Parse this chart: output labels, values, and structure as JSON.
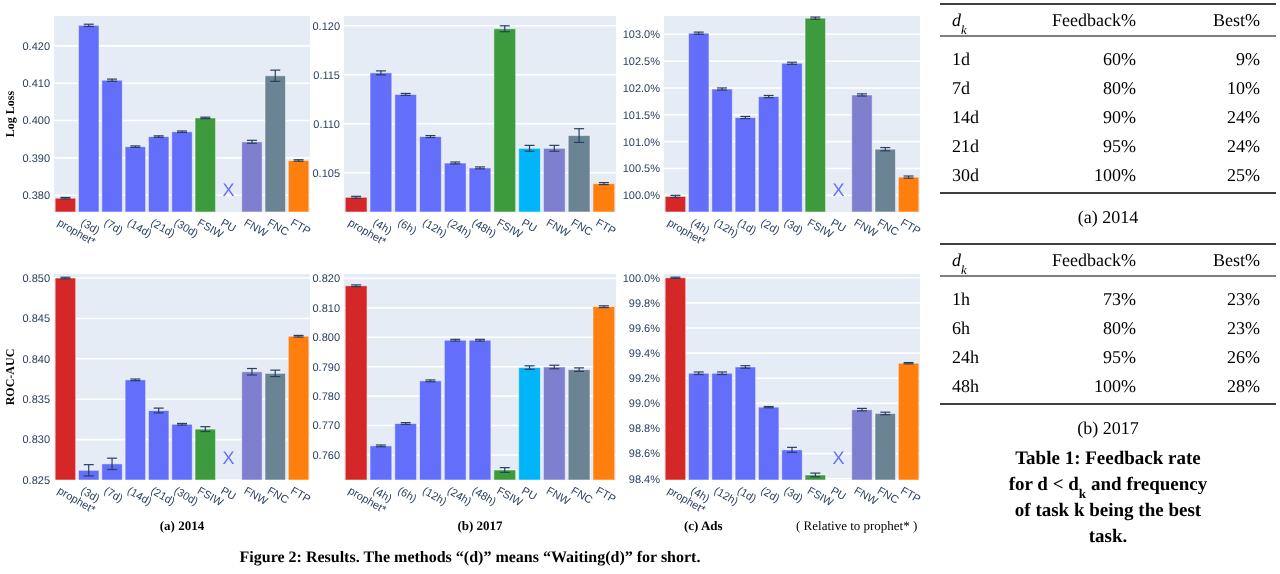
{
  "chart_data": [
    {
      "type": "bar",
      "ylabel": "Log Loss",
      "categories": [
        "prophet*",
        "(3d)",
        "(7d)",
        "(14d)",
        "(21d)",
        "(30d)",
        "FSIW",
        "PU",
        "FNW",
        "FNC",
        "FTP"
      ],
      "values": [
        0.3792,
        0.4255,
        0.4108,
        0.393,
        0.3957,
        0.397,
        0.4007,
        null,
        0.3943,
        0.412,
        0.3893
      ],
      "colors": [
        "#d62728",
        "#636efa",
        "#636efa",
        "#636efa",
        "#636efa",
        "#636efa",
        "#3d9a3d",
        null,
        "#7f7fd0",
        "#6b8494",
        "#ff7f0e"
      ],
      "errors": [
        0.0002,
        0.0003,
        0.0003,
        0.0002,
        0.0002,
        0.0002,
        0.0002,
        null,
        0.0004,
        0.0015,
        0.0002
      ],
      "ylim": [
        0.3755,
        0.428
      ],
      "yticks": [
        {
          "value": 0.38,
          "label": "0.380"
        },
        {
          "value": 0.39,
          "label": "0.390"
        },
        {
          "value": 0.4,
          "label": "0.400"
        },
        {
          "value": 0.41,
          "label": "0.410"
        },
        {
          "value": 0.42,
          "label": "0.420"
        }
      ],
      "grid": "y",
      "annotations": [
        "X"
      ]
    },
    {
      "type": "bar",
      "categories": [
        "prophet*",
        "(4h)",
        "(6h)",
        "(12h)",
        "(24h)",
        "(48h)",
        "FSIW",
        "PU",
        "FNW",
        "FNC",
        "FTP"
      ],
      "values": [
        0.1025,
        0.1152,
        0.113,
        0.1087,
        0.106,
        0.1055,
        0.1197,
        0.1075,
        0.1075,
        0.1088,
        0.1039
      ],
      "colors": [
        "#d62728",
        "#636efa",
        "#636efa",
        "#636efa",
        "#636efa",
        "#636efa",
        "#3d9a3d",
        "#00b5f7",
        "#7f7fd0",
        "#6b8494",
        "#ff7f0e"
      ],
      "errors": [
        0.0001,
        0.0002,
        0.0001,
        0.0001,
        0.0001,
        0.0001,
        0.0003,
        0.0003,
        0.0003,
        0.0007,
        0.0001
      ],
      "ylim": [
        0.101,
        0.121
      ],
      "yticks": [
        {
          "value": 0.105,
          "label": "0.105"
        },
        {
          "value": 0.11,
          "label": "0.110"
        },
        {
          "value": 0.115,
          "label": "0.115"
        },
        {
          "value": 0.12,
          "label": "0.120"
        }
      ],
      "grid": "y"
    },
    {
      "type": "bar",
      "categories": [
        "prophet*",
        "(4h)",
        "(12h)",
        "(1d)",
        "(2d)",
        "(3d)",
        "FSIW",
        "PU",
        "FNW",
        "FNC",
        "FTP"
      ],
      "values": [
        99.98,
        103.02,
        101.98,
        101.45,
        101.84,
        102.46,
        103.3,
        null,
        101.87,
        100.86,
        100.34
      ],
      "colors": [
        "#d62728",
        "#636efa",
        "#636efa",
        "#636efa",
        "#636efa",
        "#636efa",
        "#3d9a3d",
        null,
        "#7f7fd0",
        "#6b8494",
        "#ff7f0e"
      ],
      "errors": [
        0.02,
        0.02,
        0.02,
        0.02,
        0.02,
        0.02,
        0.02,
        null,
        0.02,
        0.03,
        0.02
      ],
      "ylim": [
        99.69,
        103.34
      ],
      "yticks": [
        {
          "value": 100,
          "label": "100.0%"
        },
        {
          "value": 100.5,
          "label": "100.5%"
        },
        {
          "value": 101,
          "label": "101.0%"
        },
        {
          "value": 101.5,
          "label": "101.5%"
        },
        {
          "value": 102,
          "label": "102.0%"
        },
        {
          "value": 102.5,
          "label": "102.5%"
        },
        {
          "value": 103,
          "label": "103.0%"
        }
      ],
      "grid": "y",
      "annotations": [
        "X"
      ]
    },
    {
      "type": "bar",
      "title": "(a) 2014",
      "ylabel": "ROC-AUC",
      "categories": [
        "prophet*",
        "(3d)",
        "(7d)",
        "(14d)",
        "(21d)",
        "(30d)",
        "FSIW",
        "PU",
        "FNW",
        "FNC",
        "FTP"
      ],
      "values": [
        0.85,
        0.8262,
        0.827,
        0.8374,
        0.8336,
        0.8319,
        0.8313,
        null,
        0.8384,
        0.8382,
        0.8428
      ],
      "colors": [
        "#d62728",
        "#636efa",
        "#636efa",
        "#636efa",
        "#636efa",
        "#636efa",
        "#3d9a3d",
        null,
        "#7f7fd0",
        "#6b8494",
        "#ff7f0e"
      ],
      "errors": [
        0.0001,
        0.0007,
        0.0007,
        0.0001,
        0.0003,
        0.0001,
        0.0003,
        null,
        0.0004,
        0.0004,
        0.0001
      ],
      "ylim": [
        0.825,
        0.8505
      ],
      "yticks": [
        {
          "value": 0.825,
          "label": "0.825"
        },
        {
          "value": 0.83,
          "label": "0.830"
        },
        {
          "value": 0.835,
          "label": "0.835"
        },
        {
          "value": 0.84,
          "label": "0.840"
        },
        {
          "value": 0.845,
          "label": "0.845"
        },
        {
          "value": 0.85,
          "label": "0.850"
        }
      ],
      "grid": "y",
      "annotations": [
        "X",
        "Figure 2: Results. The methods “(d)” means “Waiting(d)” for short."
      ]
    },
    {
      "type": "bar",
      "title": "(b) 2017",
      "categories": [
        "prophet*",
        "(4h)",
        "(6h)",
        "(12h)",
        "(24h)",
        "(48h)",
        "FSIW",
        "PU",
        "FNW",
        "FNC",
        "FTP"
      ],
      "values": [
        0.8175,
        0.7631,
        0.7707,
        0.7852,
        0.799,
        0.799,
        0.7549,
        0.7897,
        0.7899,
        0.789,
        0.8104
      ],
      "colors": [
        "#d62728",
        "#636efa",
        "#636efa",
        "#636efa",
        "#636efa",
        "#636efa",
        "#3d9a3d",
        "#00b5f7",
        "#7f7fd0",
        "#6b8494",
        "#ff7f0e"
      ],
      "errors": [
        0.0003,
        0.0003,
        0.0003,
        0.0003,
        0.0003,
        0.0003,
        0.0008,
        0.0006,
        0.0006,
        0.0006,
        0.0003
      ],
      "ylim": [
        0.7515,
        0.8215
      ],
      "yticks": [
        {
          "value": 0.76,
          "label": "0.760"
        },
        {
          "value": 0.77,
          "label": "0.770"
        },
        {
          "value": 0.78,
          "label": "0.780"
        },
        {
          "value": 0.79,
          "label": "0.790"
        },
        {
          "value": 0.8,
          "label": "0.800"
        },
        {
          "value": 0.81,
          "label": "0.810"
        },
        {
          "value": 0.82,
          "label": "0.820"
        }
      ],
      "grid": "y"
    },
    {
      "type": "bar",
      "title": "(c) Ads",
      "categories": [
        "prophet*",
        "(4h)",
        "(12h)",
        "(1d)",
        "(2d)",
        "(3d)",
        "FSIW",
        "PU",
        "FNW",
        "FNC",
        "FTP"
      ],
      "values": [
        100.0,
        99.24,
        99.24,
        99.29,
        98.97,
        98.63,
        98.43,
        null,
        98.95,
        98.92,
        99.32
      ],
      "colors": [
        "#d62728",
        "#636efa",
        "#636efa",
        "#636efa",
        "#636efa",
        "#636efa",
        "#3d9a3d",
        null,
        "#7f7fd0",
        "#6b8494",
        "#ff7f0e"
      ],
      "errors": [
        0.005,
        0.01,
        0.01,
        0.01,
        0.005,
        0.02,
        0.015,
        null,
        0.01,
        0.01,
        0.005
      ],
      "ylim": [
        98.39,
        100.03
      ],
      "yticks": [
        {
          "value": 98.4,
          "label": "98.4%"
        },
        {
          "value": 98.6,
          "label": "98.6%"
        },
        {
          "value": 98.8,
          "label": "98.8%"
        },
        {
          "value": 99,
          "label": "99.0%"
        },
        {
          "value": 99.2,
          "label": "99.2%"
        },
        {
          "value": 99.4,
          "label": "99.4%"
        },
        {
          "value": 99.6,
          "label": "99.6%"
        },
        {
          "value": 99.8,
          "label": "99.8%"
        },
        {
          "value": 100,
          "label": "100.0%"
        }
      ],
      "grid": "y",
      "annotations": [
        "X",
        "( Relative to prophet* )"
      ]
    },
    {
      "type": "other",
      "title": "(a) 2014",
      "annotations": [
        "d$_{k}$",
        "Feedback%",
        "Best%",
        "1d",
        "60%",
        "9%",
        "7d",
        "80%",
        "10%",
        "14d",
        "90%",
        "24%",
        "21d",
        "95%",
        "24%",
        "30d",
        "100%",
        "25%"
      ]
    },
    {
      "type": "other",
      "title": "(b) 2017",
      "subtitle": "Table 1: Feedback rate for d < d$_{k}$ and frequency of task k being the best task.",
      "annotations": [
        "d$_{k}$",
        "Feedback%",
        "Best%",
        "1h",
        "73%",
        "23%",
        "6h",
        "80%",
        "23%",
        "24h",
        "95%",
        "26%",
        "48h",
        "100%",
        "28%"
      ]
    }
  ]
}
